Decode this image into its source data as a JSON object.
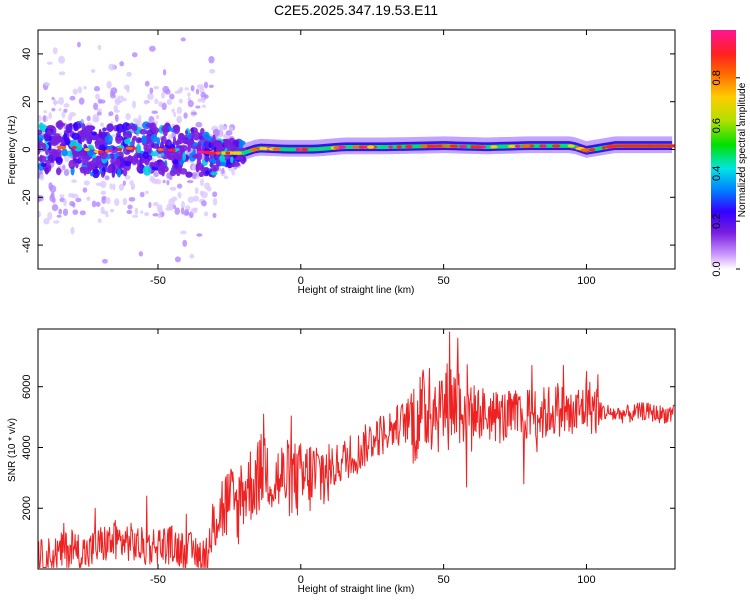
{
  "title": "C2E5.2025.347.19.53.E11",
  "chart_data": [
    {
      "type": "heatmap",
      "xlabel": "Height of straight line (km)",
      "ylabel": "Frequency (Hz)",
      "xlim": [
        -92,
        131
      ],
      "ylim": [
        -50,
        50
      ],
      "xticks": [
        -50,
        0,
        50,
        100
      ],
      "yticks": [
        -40,
        -20,
        0,
        20,
        40
      ],
      "colorbar": {
        "label": "Normalized spectral amplitude",
        "range": [
          0.0,
          1.0
        ],
        "ticks": [
          0.0,
          0.2,
          0.4,
          0.6,
          0.8
        ],
        "tick_labels": [
          "0.0",
          "0.2",
          "0.4",
          "0.6",
          "0.8"
        ],
        "colors": [
          "#ffffff",
          "#cc99ff",
          "#7a1fe0",
          "#3300ff",
          "#0080ff",
          "#00e5e5",
          "#00e000",
          "#b0e000",
          "#ffcc00",
          "#ff6600",
          "#ff2020",
          "#ff1493"
        ]
      },
      "ridge": [
        {
          "x": -92,
          "f": 0.5
        },
        {
          "x": -80,
          "f": 1.0
        },
        {
          "x": -70,
          "f": -1.0
        },
        {
          "x": -60,
          "f": 0.5
        },
        {
          "x": -50,
          "f": 0.0
        },
        {
          "x": -40,
          "f": -0.5
        },
        {
          "x": -30,
          "f": -1.5
        },
        {
          "x": -20,
          "f": -1.5
        },
        {
          "x": -15,
          "f": 0.5
        },
        {
          "x": -5,
          "f": 0.0
        },
        {
          "x": 5,
          "f": 0.0
        },
        {
          "x": 15,
          "f": 1.0
        },
        {
          "x": 30,
          "f": 1.0
        },
        {
          "x": 50,
          "f": 1.5
        },
        {
          "x": 65,
          "f": 1.0
        },
        {
          "x": 80,
          "f": 1.5
        },
        {
          "x": 95,
          "f": 1.5
        },
        {
          "x": 100,
          "f": -0.5
        },
        {
          "x": 110,
          "f": 1.5
        },
        {
          "x": 131,
          "f": 1.5
        }
      ]
    },
    {
      "type": "line",
      "xlabel": "Height of straight line (km)",
      "ylabel": "SNR (10 * v/v)",
      "xlim": [
        -92,
        131
      ],
      "ylim": [
        0,
        7900
      ],
      "xticks": [
        -50,
        0,
        50,
        100
      ],
      "yticks": [
        2000,
        4000,
        6000
      ],
      "color": "#ee2222",
      "x": [
        -92,
        -85,
        -80,
        -75,
        -70,
        -65,
        -60,
        -55,
        -50,
        -45,
        -40,
        -35,
        -32,
        -30,
        -25,
        -22,
        -20,
        -15,
        -12,
        -10,
        -5,
        0,
        5,
        10,
        15,
        20,
        25,
        30,
        35,
        40,
        45,
        50,
        55,
        60,
        65,
        70,
        75,
        80,
        85,
        90,
        95,
        100,
        105,
        110,
        115,
        120,
        125,
        131
      ],
      "y": [
        300,
        500,
        700,
        500,
        800,
        900,
        900,
        700,
        800,
        800,
        600,
        500,
        300,
        1800,
        2200,
        2000,
        2600,
        3000,
        3500,
        2900,
        3000,
        2900,
        3100,
        3200,
        3600,
        3800,
        4300,
        4500,
        4800,
        4900,
        5300,
        5300,
        5600,
        5200,
        5100,
        5000,
        5000,
        5100,
        5100,
        5300,
        5000,
        5400,
        5200,
        5100,
        5100,
        5200,
        5100,
        5100
      ],
      "spikes": [
        {
          "x": -83,
          "y": 1500
        },
        {
          "x": -72,
          "y": 2000
        },
        {
          "x": -65,
          "y": 1600
        },
        {
          "x": -54,
          "y": 2400
        },
        {
          "x": -40,
          "y": 1800
        },
        {
          "x": -21,
          "y": 3400
        },
        {
          "x": -13,
          "y": 5100
        },
        {
          "x": 45,
          "y": 6600
        },
        {
          "x": 52,
          "y": 7800
        },
        {
          "x": 55,
          "y": 7600
        },
        {
          "x": 58,
          "y": 2700
        },
        {
          "x": 78,
          "y": 2800
        },
        {
          "x": 81,
          "y": 6700
        },
        {
          "x": 92,
          "y": 6700
        },
        {
          "x": 100,
          "y": 6500
        },
        {
          "x": 104,
          "y": 6400
        }
      ]
    }
  ]
}
